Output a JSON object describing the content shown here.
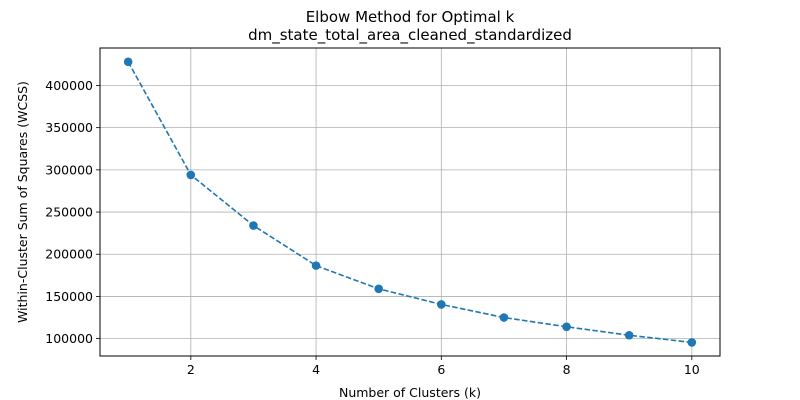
{
  "chart_data": {
    "type": "line",
    "title": "Elbow Method for Optimal k",
    "subtitle": "dm_state_total_area_cleaned_standardized",
    "xlabel": "Number of Clusters (k)",
    "ylabel": "Within-Cluster Sum of Squares (WCSS)",
    "x": [
      1,
      2,
      3,
      4,
      5,
      6,
      7,
      8,
      9,
      10
    ],
    "series": [
      {
        "values": [
          428000,
          294000,
          234000,
          186500,
          159000,
          140500,
          125000,
          114000,
          104000,
          95500
        ]
      }
    ],
    "xlim": [
      0.55,
      10.45
    ],
    "ylim": [
      79400,
      444400
    ],
    "xticks": [
      2,
      4,
      6,
      8,
      10
    ],
    "yticks": [
      100000,
      150000,
      200000,
      250000,
      300000,
      350000,
      400000
    ],
    "grid": true,
    "line_style": "dashed",
    "marker": "circle",
    "color": "#1f77b4"
  }
}
